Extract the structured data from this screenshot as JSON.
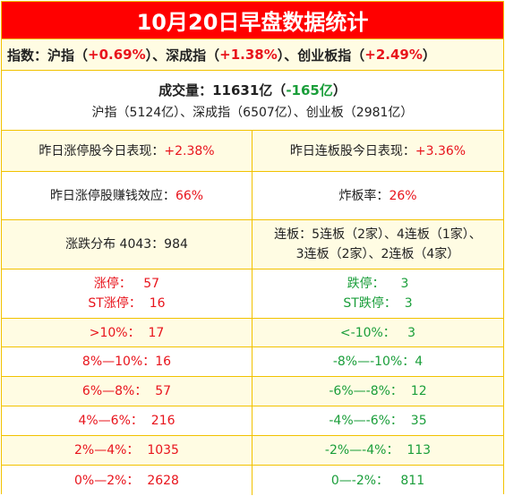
{
  "title": "10月20日早盘数据统计",
  "indices": {
    "prefix": "指数：沪指（",
    "sh_change": "+0.69%",
    "mid1": "）、深成指（",
    "sz_change": "+1.38%",
    "mid2": "）、创业板指（",
    "cy_change": "+2.49%",
    "suffix": "）"
  },
  "volume": {
    "label": "成交量：11631亿（",
    "change": "-165亿",
    "close": "）",
    "detail": "沪指（5124亿）、深成指（6507亿）、创业板（2981亿）"
  },
  "perf": {
    "limitup_label": "昨日涨停股今日表现：",
    "limitup_value": "+2.38%",
    "streak_label": "昨日连板股今日表现：",
    "streak_value": "+3.36%"
  },
  "effect": {
    "money_label": "昨日涨停股赚钱效应：",
    "money_value": "66%",
    "break_label": "炸板率：",
    "break_value": "26%"
  },
  "breadth": {
    "text": "涨跌分布 4043：984",
    "streak_line1": "连板：5连板（2家）、4连板（1家）、",
    "streak_line2": "3连板（2家）、2连板（4家）"
  },
  "limits": {
    "up": "涨停：   57",
    "st_up": "ST涨停：  16",
    "down": "跌停：    3",
    "st_down": "ST跌停：  3"
  },
  "distribution": [
    {
      "up": ">10%：  17",
      "down": "<-10%：   3"
    },
    {
      "up": "8%—10%：16",
      "down": "-8%—-10%：4"
    },
    {
      "up": "6%—8%：  57",
      "down": "-6%—-8%：  12"
    },
    {
      "up": "4%—6%：  216",
      "down": "-4%—-6%：  35"
    },
    {
      "up": "2%—4%：  1035",
      "down": "-2%—-4%：  113"
    },
    {
      "up": "0%—2%：  2628",
      "down": "0—-2%：   811"
    }
  ],
  "colors": {
    "header_bg": "#ff0000",
    "row_alt_bg": "#fffce3",
    "border": "#f2c200",
    "up": "#e8141c",
    "down": "#1a9e3a"
  }
}
